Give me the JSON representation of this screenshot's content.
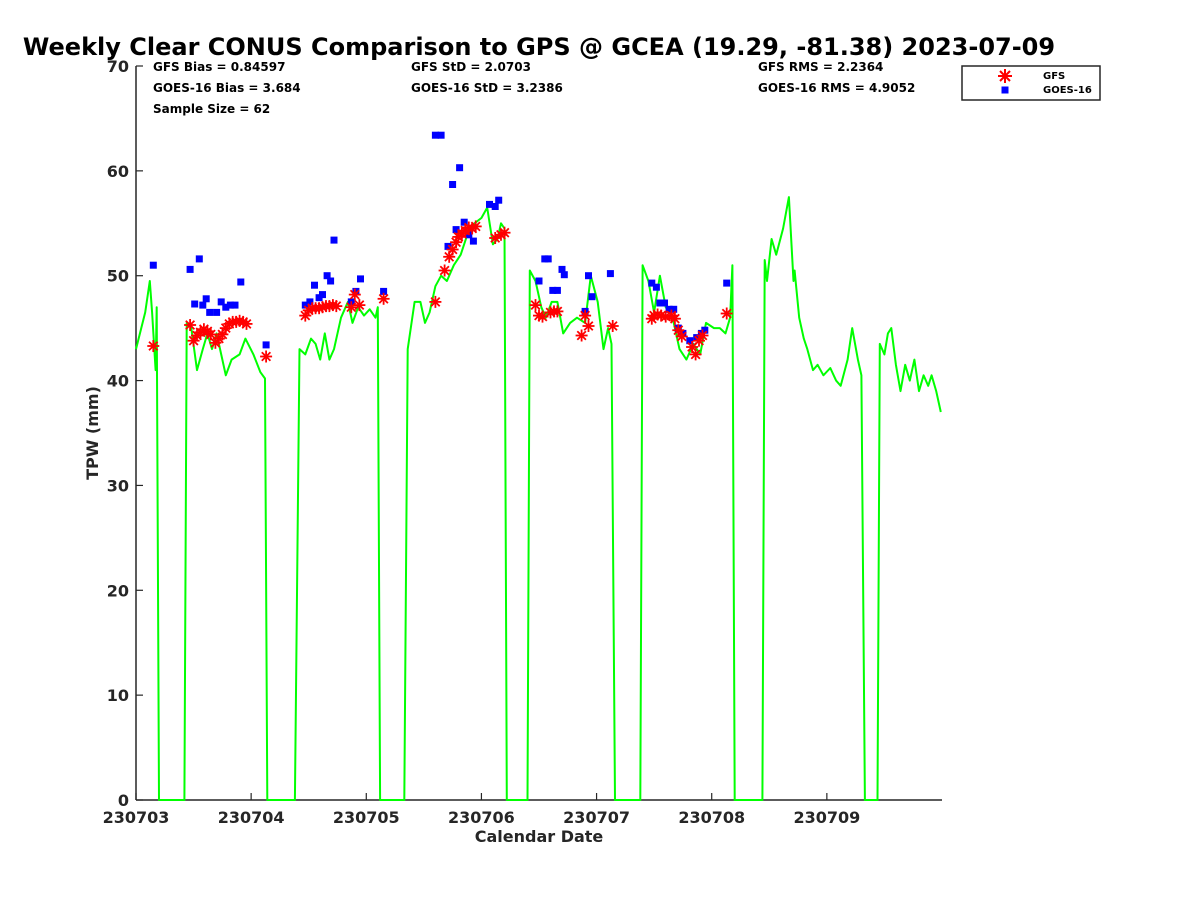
{
  "chart_data": {
    "type": "scatter",
    "title": "Weekly Clear CONUS Comparison to GPS @ GCEA (19.29, -81.38) 2023-07-09",
    "xlabel": "Calendar Date",
    "ylabel": "TPW (mm)",
    "xlim": [
      230703,
      230710
    ],
    "ylim": [
      0,
      70
    ],
    "x_ticks": [
      "230703",
      "230704",
      "230705",
      "230706",
      "230707",
      "230708",
      "230709"
    ],
    "y_ticks": [
      0,
      10,
      20,
      30,
      40,
      50,
      60,
      70
    ],
    "grid": false,
    "legend_position": "top-right outside",
    "stats": {
      "gfs_bias": "GFS Bias = 0.84597",
      "goes_bias": "GOES-16 Bias = 3.684",
      "sample_size": "Sample Size = 62",
      "gfs_std": "GFS StD = 2.0703",
      "goes_std": "GOES-16 StD = 3.2386",
      "gfs_rms": "GFS RMS = 2.2364",
      "goes_rms": "GOES-16 RMS = 4.9052"
    },
    "series": [
      {
        "name": "GPS",
        "kind": "line",
        "color": "#00ff00",
        "points": [
          [
            230703.0,
            43.0
          ],
          [
            230703.08,
            46.5
          ],
          [
            230703.12,
            49.5
          ],
          [
            230703.14,
            46.5
          ],
          [
            230703.17,
            41.0
          ],
          [
            230703.18,
            47.0
          ],
          [
            230703.2,
            0
          ],
          [
            230703.42,
            0
          ],
          [
            230703.44,
            45.5
          ],
          [
            230703.48,
            45.0
          ],
          [
            230703.53,
            41.0
          ],
          [
            230703.58,
            43.0
          ],
          [
            230703.62,
            44.5
          ],
          [
            230703.66,
            43.0
          ],
          [
            230703.7,
            44.5
          ],
          [
            230703.74,
            42.5
          ],
          [
            230703.78,
            40.5
          ],
          [
            230703.83,
            42.0
          ],
          [
            230703.9,
            42.5
          ],
          [
            230703.95,
            44.0
          ],
          [
            230704.02,
            42.5
          ],
          [
            230704.08,
            40.8
          ],
          [
            230704.12,
            40.2
          ],
          [
            230704.14,
            0
          ],
          [
            230704.38,
            0
          ],
          [
            230704.42,
            43.0
          ],
          [
            230704.47,
            42.5
          ],
          [
            230704.52,
            44.0
          ],
          [
            230704.56,
            43.5
          ],
          [
            230704.6,
            42.0
          ],
          [
            230704.64,
            44.5
          ],
          [
            230704.68,
            42.0
          ],
          [
            230704.72,
            43.0
          ],
          [
            230704.78,
            46.0
          ],
          [
            230704.84,
            47.5
          ],
          [
            230704.88,
            45.5
          ],
          [
            230704.93,
            47.0
          ],
          [
            230704.98,
            46.2
          ],
          [
            230705.03,
            46.8
          ],
          [
            230705.08,
            46.0
          ],
          [
            230705.1,
            47.0
          ],
          [
            230705.12,
            0
          ],
          [
            230705.33,
            0
          ],
          [
            230705.36,
            43.0
          ],
          [
            230705.42,
            47.5
          ],
          [
            230705.47,
            47.5
          ],
          [
            230705.51,
            45.5
          ],
          [
            230705.55,
            46.5
          ],
          [
            230705.6,
            49.0
          ],
          [
            230705.65,
            50.0
          ],
          [
            230705.7,
            49.5
          ],
          [
            230705.76,
            51.0
          ],
          [
            230705.82,
            52.0
          ],
          [
            230705.88,
            54.0
          ],
          [
            230705.94,
            55.0
          ],
          [
            230706.0,
            55.5
          ],
          [
            230706.05,
            56.5
          ],
          [
            230706.1,
            53.0
          ],
          [
            230706.14,
            53.5
          ],
          [
            230706.17,
            55.0
          ],
          [
            230706.2,
            54.5
          ],
          [
            230706.22,
            0
          ],
          [
            230706.4,
            0
          ],
          [
            230706.42,
            50.5
          ],
          [
            230706.47,
            49.5
          ],
          [
            230706.52,
            47.0
          ],
          [
            230706.56,
            46.0
          ],
          [
            230706.61,
            47.5
          ],
          [
            230706.66,
            47.5
          ],
          [
            230706.71,
            44.5
          ],
          [
            230706.77,
            45.5
          ],
          [
            230706.83,
            46.0
          ],
          [
            230706.9,
            45.5
          ],
          [
            230706.95,
            50.0
          ],
          [
            230707.01,
            47.5
          ],
          [
            230707.06,
            43.0
          ],
          [
            230707.1,
            45.0
          ],
          [
            230707.13,
            43.5
          ],
          [
            230707.16,
            0
          ],
          [
            230707.38,
            0
          ],
          [
            230707.4,
            51.0
          ],
          [
            230707.45,
            49.5
          ],
          [
            230707.5,
            46.5
          ],
          [
            230707.55,
            50.0
          ],
          [
            230707.6,
            47.0
          ],
          [
            230707.66,
            46.0
          ],
          [
            230707.72,
            43.0
          ],
          [
            230707.78,
            42.0
          ],
          [
            230707.84,
            43.5
          ],
          [
            230707.9,
            42.5
          ],
          [
            230707.95,
            45.5
          ],
          [
            230708.02,
            45.0
          ],
          [
            230708.07,
            45.0
          ],
          [
            230708.12,
            44.5
          ],
          [
            230708.16,
            46.0
          ],
          [
            230708.18,
            51.0
          ],
          [
            230708.2,
            0
          ],
          [
            230708.44,
            0
          ],
          [
            230708.46,
            51.5
          ],
          [
            230708.48,
            49.5
          ],
          [
            230708.52,
            53.5
          ],
          [
            230708.56,
            52.0
          ],
          [
            230708.62,
            54.5
          ],
          [
            230708.67,
            57.5
          ],
          [
            230708.71,
            49.5
          ],
          [
            230708.72,
            50.5
          ],
          [
            230708.76,
            46.0
          ],
          [
            230708.8,
            44.0
          ],
          [
            230708.83,
            43.0
          ],
          [
            230708.88,
            41.0
          ],
          [
            230708.92,
            41.5
          ],
          [
            230708.97,
            40.5
          ],
          [
            230709.03,
            41.2
          ],
          [
            230709.08,
            40.0
          ],
          [
            230709.12,
            39.5
          ],
          [
            230709.18,
            42.0
          ],
          [
            230709.22,
            45.0
          ],
          [
            230709.27,
            42.0
          ],
          [
            230709.3,
            40.5
          ],
          [
            230709.33,
            0
          ],
          [
            230709.44,
            0
          ],
          [
            230709.46,
            43.5
          ],
          [
            230709.5,
            42.5
          ],
          [
            230709.53,
            44.5
          ],
          [
            230709.56,
            45.0
          ],
          [
            230709.6,
            41.5
          ],
          [
            230709.64,
            39.0
          ],
          [
            230709.68,
            41.5
          ],
          [
            230709.72,
            40.0
          ],
          [
            230709.76,
            42.0
          ],
          [
            230709.8,
            39.0
          ],
          [
            230709.84,
            40.5
          ],
          [
            230709.88,
            39.5
          ],
          [
            230709.91,
            40.5
          ],
          [
            230709.95,
            39.0
          ],
          [
            230709.99,
            37.0
          ]
        ]
      },
      {
        "name": "GFS",
        "kind": "marker",
        "marker": "asterisk",
        "color": "#ff0000",
        "points": [
          [
            230703.15,
            43.3
          ],
          [
            230703.47,
            45.3
          ],
          [
            230703.5,
            43.8
          ],
          [
            230703.53,
            44.3
          ],
          [
            230703.56,
            44.6
          ],
          [
            230703.59,
            44.9
          ],
          [
            230703.62,
            44.7
          ],
          [
            230703.65,
            44.4
          ],
          [
            230703.69,
            43.6
          ],
          [
            230703.72,
            44.0
          ],
          [
            230703.75,
            44.4
          ],
          [
            230703.78,
            45.0
          ],
          [
            230703.81,
            45.4
          ],
          [
            230703.84,
            45.6
          ],
          [
            230703.87,
            45.6
          ],
          [
            230703.9,
            45.7
          ],
          [
            230703.93,
            45.6
          ],
          [
            230703.96,
            45.4
          ],
          [
            230704.13,
            42.3
          ],
          [
            230704.47,
            46.2
          ],
          [
            230704.5,
            46.7
          ],
          [
            230704.53,
            46.9
          ],
          [
            230704.56,
            46.9
          ],
          [
            230704.59,
            46.9
          ],
          [
            230704.62,
            47.0
          ],
          [
            230704.65,
            47.1
          ],
          [
            230704.68,
            47.1
          ],
          [
            230704.71,
            47.2
          ],
          [
            230704.74,
            47.1
          ],
          [
            230704.87,
            47.0
          ],
          [
            230704.9,
            48.2
          ],
          [
            230704.94,
            47.2
          ],
          [
            230705.15,
            47.8
          ],
          [
            230705.6,
            47.5
          ],
          [
            230705.68,
            50.5
          ],
          [
            230705.72,
            51.8
          ],
          [
            230705.75,
            52.5
          ],
          [
            230705.78,
            53.2
          ],
          [
            230705.8,
            53.7
          ],
          [
            230705.83,
            54.0
          ],
          [
            230705.86,
            54.3
          ],
          [
            230705.89,
            54.6
          ],
          [
            230705.92,
            54.5
          ],
          [
            230705.95,
            54.7
          ],
          [
            230706.12,
            53.6
          ],
          [
            230706.17,
            53.9
          ],
          [
            230706.2,
            54.1
          ],
          [
            230706.47,
            47.2
          ],
          [
            230706.5,
            46.2
          ],
          [
            230706.53,
            46.1
          ],
          [
            230706.6,
            46.5
          ],
          [
            230706.63,
            46.6
          ],
          [
            230706.66,
            46.6
          ],
          [
            230706.87,
            44.3
          ],
          [
            230706.9,
            46.2
          ],
          [
            230706.93,
            45.2
          ],
          [
            230707.14,
            45.2
          ],
          [
            230707.48,
            45.9
          ],
          [
            230707.5,
            46.2
          ],
          [
            230707.53,
            46.3
          ],
          [
            230707.56,
            46.2
          ],
          [
            230707.6,
            46.1
          ],
          [
            230707.65,
            46.2
          ],
          [
            230707.68,
            45.9
          ],
          [
            230707.71,
            44.8
          ],
          [
            230707.74,
            44.2
          ],
          [
            230707.83,
            43.2
          ],
          [
            230707.86,
            42.5
          ],
          [
            230707.89,
            43.8
          ],
          [
            230707.92,
            44.3
          ],
          [
            230708.13,
            46.4
          ]
        ]
      },
      {
        "name": "GOES-16",
        "kind": "marker",
        "marker": "square",
        "color": "#0000ff",
        "points": [
          [
            230703.15,
            51.0
          ],
          [
            230703.47,
            50.6
          ],
          [
            230703.51,
            47.3
          ],
          [
            230703.55,
            51.6
          ],
          [
            230703.58,
            47.2
          ],
          [
            230703.61,
            47.8
          ],
          [
            230703.64,
            46.5
          ],
          [
            230703.7,
            46.5
          ],
          [
            230703.74,
            47.5
          ],
          [
            230703.78,
            47.0
          ],
          [
            230703.82,
            47.2
          ],
          [
            230703.86,
            47.2
          ],
          [
            230703.91,
            49.4
          ],
          [
            230704.13,
            43.4
          ],
          [
            230704.47,
            47.2
          ],
          [
            230704.51,
            47.5
          ],
          [
            230704.55,
            49.1
          ],
          [
            230704.59,
            47.9
          ],
          [
            230704.62,
            48.2
          ],
          [
            230704.66,
            50.0
          ],
          [
            230704.69,
            49.5
          ],
          [
            230704.72,
            53.4
          ],
          [
            230704.87,
            47.5
          ],
          [
            230704.91,
            48.5
          ],
          [
            230704.95,
            49.7
          ],
          [
            230705.15,
            48.5
          ],
          [
            230705.6,
            63.4
          ],
          [
            230705.65,
            63.4
          ],
          [
            230705.71,
            52.8
          ],
          [
            230705.75,
            58.7
          ],
          [
            230705.78,
            54.4
          ],
          [
            230705.81,
            60.3
          ],
          [
            230705.85,
            55.1
          ],
          [
            230705.89,
            53.9
          ],
          [
            230705.93,
            53.3
          ],
          [
            230706.07,
            56.8
          ],
          [
            230706.12,
            56.6
          ],
          [
            230706.15,
            57.2
          ],
          [
            230706.5,
            49.5
          ],
          [
            230706.55,
            51.6
          ],
          [
            230706.58,
            51.6
          ],
          [
            230706.62,
            48.6
          ],
          [
            230706.66,
            48.6
          ],
          [
            230706.7,
            50.6
          ],
          [
            230706.72,
            50.1
          ],
          [
            230706.9,
            46.6
          ],
          [
            230706.93,
            50.0
          ],
          [
            230706.96,
            48.0
          ],
          [
            230707.12,
            50.2
          ],
          [
            230707.48,
            49.3
          ],
          [
            230707.52,
            48.9
          ],
          [
            230707.55,
            47.4
          ],
          [
            230707.59,
            47.4
          ],
          [
            230707.63,
            46.8
          ],
          [
            230707.67,
            46.8
          ],
          [
            230707.71,
            45.0
          ],
          [
            230707.75,
            44.5
          ],
          [
            230707.81,
            43.8
          ],
          [
            230707.87,
            44.1
          ],
          [
            230707.91,
            44.5
          ],
          [
            230707.94,
            44.8
          ],
          [
            230708.13,
            49.3
          ]
        ]
      }
    ]
  }
}
